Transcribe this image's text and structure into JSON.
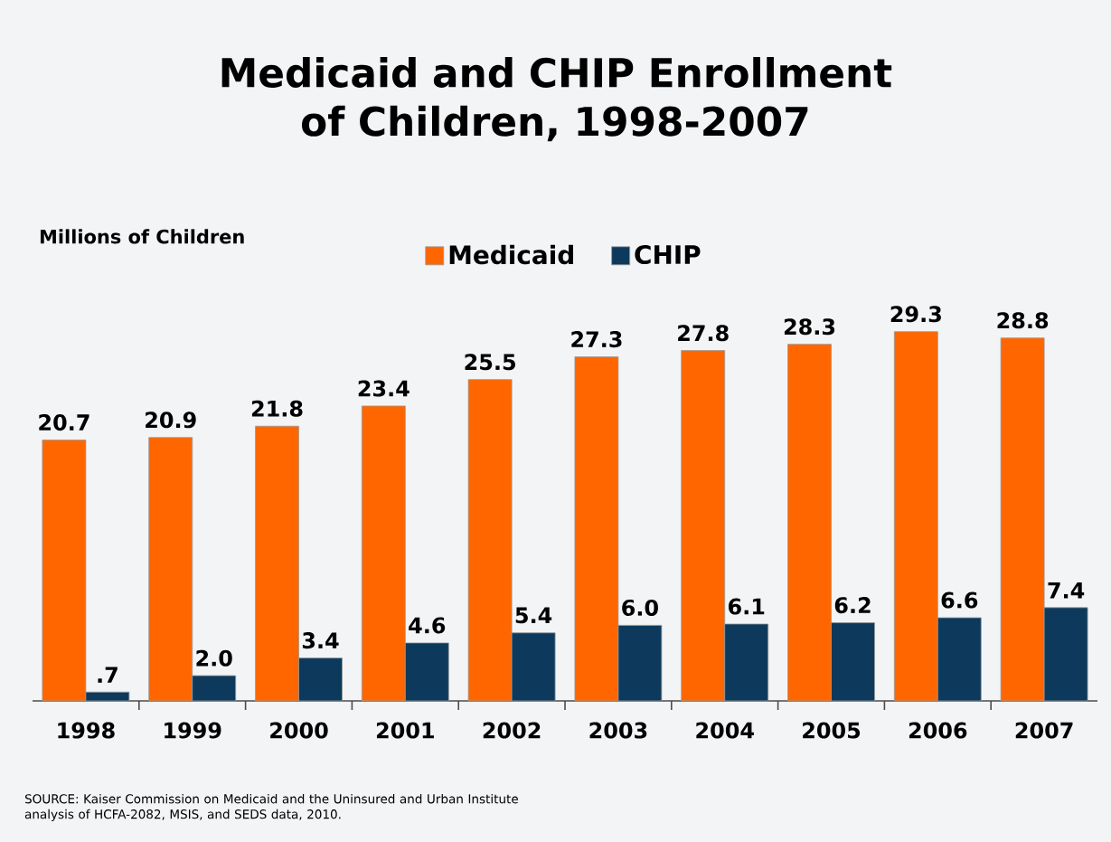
{
  "chart_data": {
    "type": "bar",
    "title": "Medicaid and CHIP Enrollment of Children, 1998-2007",
    "ylabel": "Millions of Children",
    "categories": [
      "1998",
      "1999",
      "2000",
      "2001",
      "2002",
      "2003",
      "2004",
      "2005",
      "2006",
      "2007"
    ],
    "series": [
      {
        "name": "Medicaid",
        "color": "#ff6600",
        "values": [
          20.7,
          20.9,
          21.8,
          23.4,
          25.5,
          27.3,
          27.8,
          28.3,
          29.3,
          28.8
        ],
        "value_labels": [
          "20.7",
          "20.9",
          "21.8",
          "23.4",
          "25.5",
          "27.3",
          "27.8",
          "28.3",
          "29.3",
          "28.8"
        ]
      },
      {
        "name": "CHIP",
        "color": "#0d3a5c",
        "values": [
          0.7,
          2.0,
          3.4,
          4.6,
          5.4,
          6.0,
          6.1,
          6.2,
          6.6,
          7.4
        ],
        "value_labels": [
          ".7",
          "2.0",
          "3.4",
          "4.6",
          "5.4",
          "6.0",
          "6.1",
          "6.2",
          "6.6",
          "7.4"
        ]
      }
    ],
    "tick_labels": "x",
    "legend": "top",
    "annotations": [
      "SOURCE:  Kaiser Commission on Medicaid and the Uninsured and Urban Institute analysis of HCFA-2082, MSIS, and SEDS data, 2010."
    ]
  }
}
